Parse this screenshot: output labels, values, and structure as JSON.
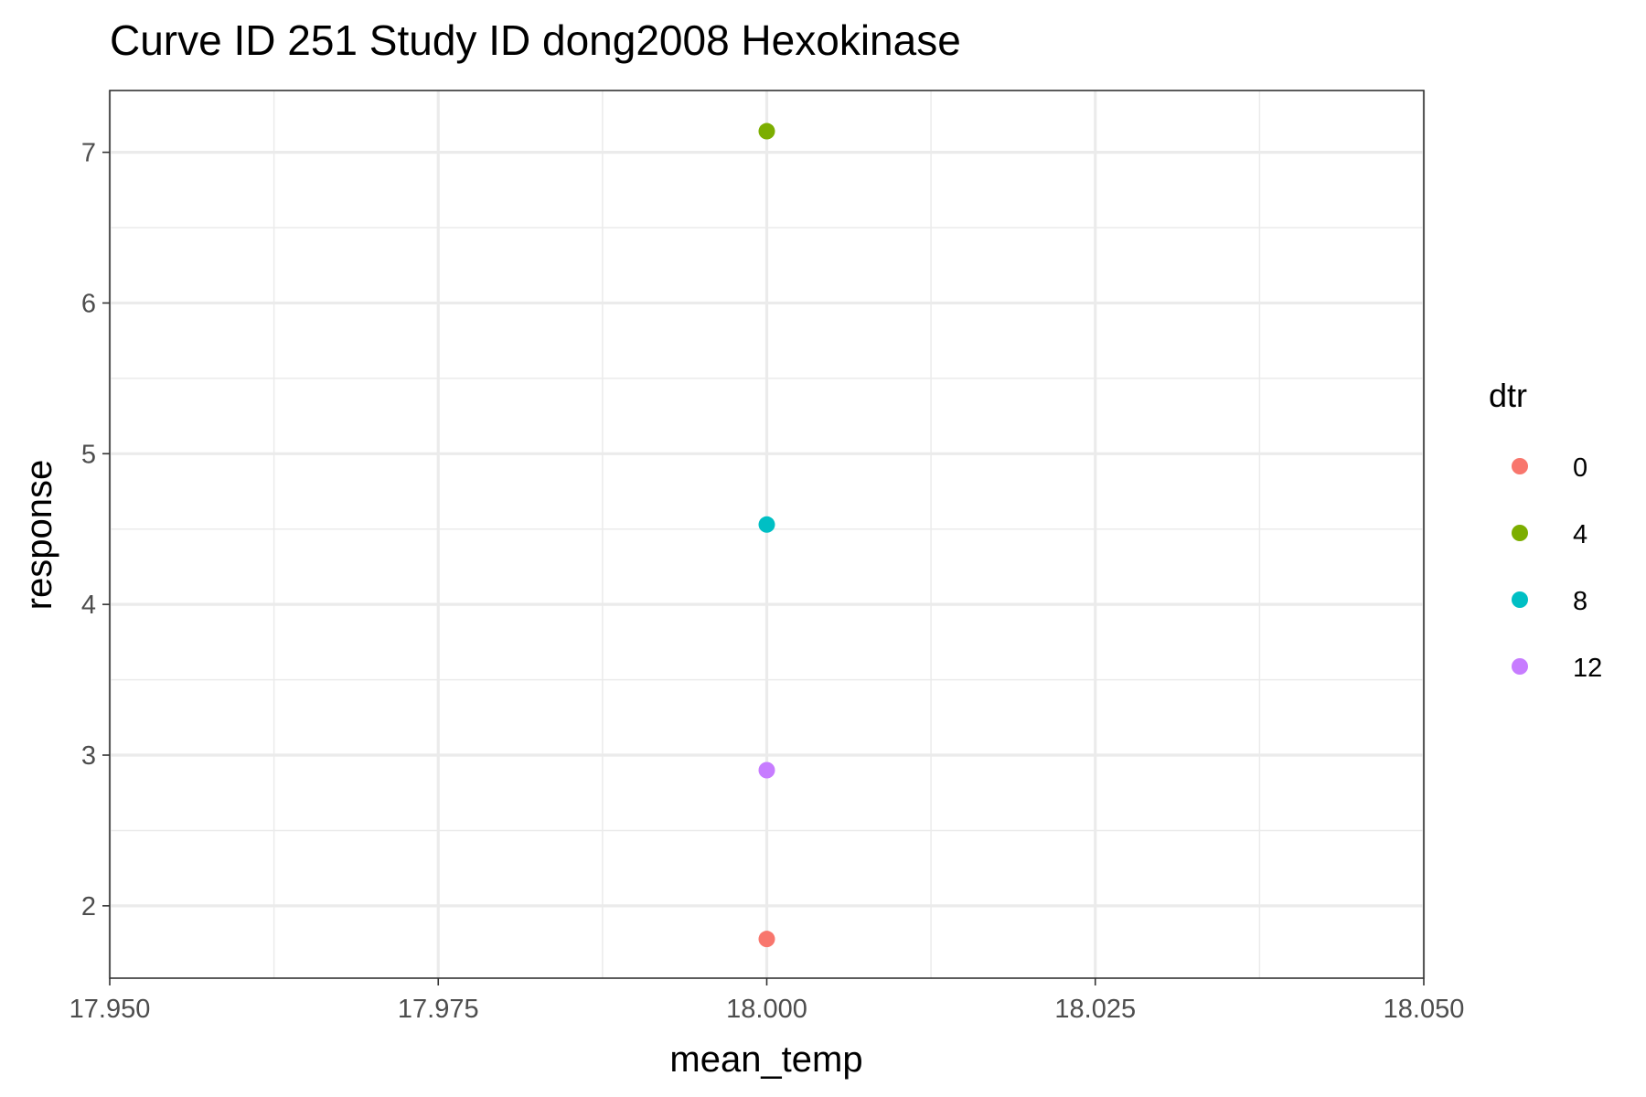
{
  "chart_data": {
    "type": "scatter",
    "title": "Curve ID 251 Study ID dong2008 Hexokinase",
    "xlabel": "mean_temp",
    "ylabel": "response",
    "xlim": [
      17.95,
      18.05
    ],
    "ylim": [
      1.52,
      7.41
    ],
    "x_ticks": [
      17.95,
      17.975,
      18.0,
      18.025,
      18.05
    ],
    "x_tick_labels": [
      "17.950",
      "17.975",
      "18.000",
      "18.025",
      "18.050"
    ],
    "y_ticks": [
      2,
      3,
      4,
      5,
      6,
      7
    ],
    "y_tick_labels": [
      "2",
      "3",
      "4",
      "5",
      "6",
      "7"
    ],
    "grid": true,
    "legend": {
      "title": "dtr",
      "placement": "right",
      "entries": [
        {
          "label": "0",
          "color": "#F8766D"
        },
        {
          "label": "4",
          "color": "#7CAE00"
        },
        {
          "label": "8",
          "color": "#00BFC4"
        },
        {
          "label": "12",
          "color": "#C77CFF"
        }
      ]
    },
    "series": [
      {
        "name": "0",
        "color": "#F8766D",
        "points": [
          {
            "x": 18.0,
            "y": 1.78
          }
        ]
      },
      {
        "name": "4",
        "color": "#7CAE00",
        "points": [
          {
            "x": 18.0,
            "y": 7.14
          }
        ]
      },
      {
        "name": "8",
        "color": "#00BFC4",
        "points": [
          {
            "x": 18.0,
            "y": 4.53
          }
        ]
      },
      {
        "name": "12",
        "color": "#C77CFF",
        "points": [
          {
            "x": 18.0,
            "y": 2.9
          }
        ]
      }
    ]
  }
}
